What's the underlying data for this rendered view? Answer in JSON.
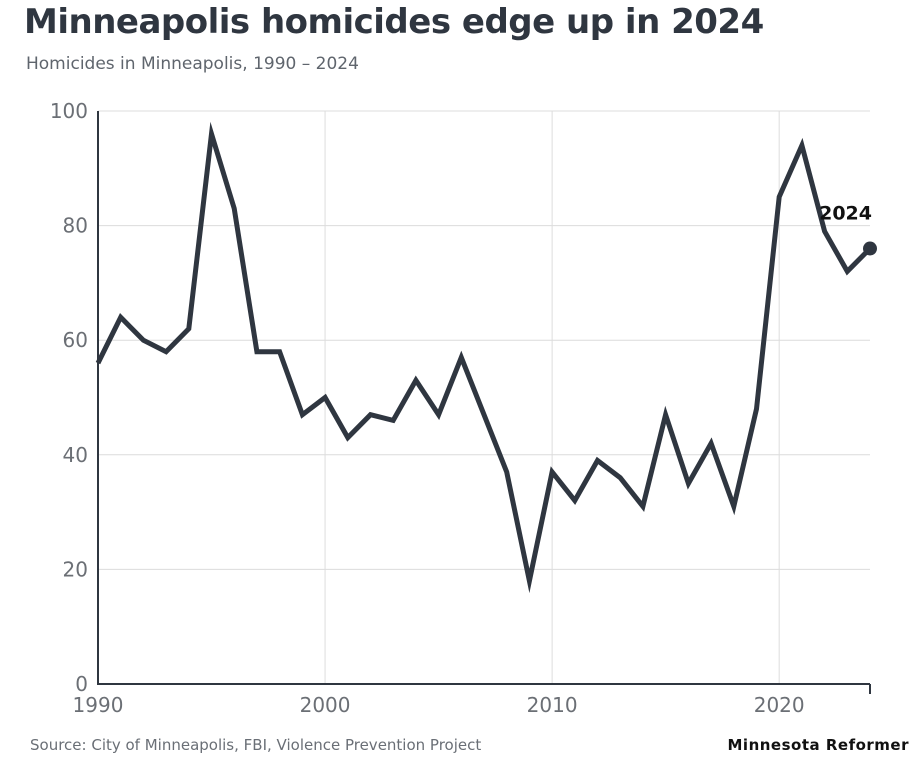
{
  "header": {
    "title": "Minneapolis homicides edge up in 2024",
    "subtitle": "Homicides in Minneapolis, 1990 – 2024"
  },
  "footer": {
    "source": "Source: City of Minneapolis, FBI, Violence Prevention Project",
    "brand": "Minnesota Reformer"
  },
  "colors": {
    "line": "#2f3640",
    "grid": "#dcdcdc",
    "axis": "#2f3640"
  },
  "chart_data": {
    "type": "line",
    "title": "Minneapolis homicides edge up in 2024",
    "subtitle": "Homicides in Minneapolis, 1990 – 2024",
    "xlabel": "",
    "ylabel": "",
    "xlim": [
      1990,
      2024
    ],
    "ylim": [
      0,
      100
    ],
    "grid": true,
    "x_ticks": [
      1990,
      2000,
      2010,
      2020
    ],
    "y_ticks": [
      0,
      20,
      40,
      60,
      80,
      100
    ],
    "x_tick_labels": [
      "1990",
      "2000",
      "2010",
      "2020"
    ],
    "y_tick_labels": [
      "0",
      "20",
      "40",
      "60",
      "80",
      "100"
    ],
    "annotation": "2024",
    "series": [
      {
        "x": [
          1990,
          1991,
          1992,
          1993,
          1994,
          1995,
          1996,
          1997,
          1998,
          1999,
          2000,
          2001,
          2002,
          2003,
          2004,
          2005,
          2006,
          2007,
          2008,
          2009,
          2010,
          2011,
          2012,
          2013,
          2014,
          2015,
          2016,
          2017,
          2018,
          2019,
          2020,
          2021,
          2022,
          2023,
          2024
        ],
        "values": [
          56,
          64,
          60,
          58,
          62,
          96,
          83,
          58,
          58,
          47,
          50,
          43,
          47,
          46,
          53,
          47,
          57,
          47,
          37,
          18,
          37,
          32,
          39,
          36,
          31,
          47,
          35,
          42,
          31,
          48,
          85,
          94,
          79,
          72,
          76
        ]
      }
    ]
  }
}
